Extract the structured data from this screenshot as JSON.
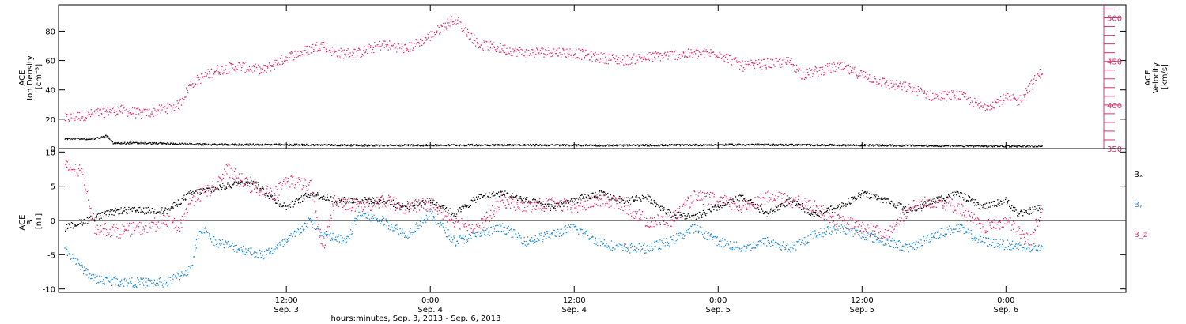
{
  "chart_data": [
    {
      "type": "scatter",
      "panel": "top",
      "left_axis": {
        "label_lines": [
          "ACE",
          "Ion Density",
          "[cm⁻³]"
        ],
        "ylim": [
          0,
          98
        ],
        "ticks": [
          0,
          20,
          40,
          60,
          80
        ]
      },
      "right_axis": {
        "label_lines": [
          "ACE",
          "Velocity",
          "[km/s]"
        ],
        "ylim": [
          350,
          515
        ],
        "ticks": [
          350,
          400,
          450,
          500
        ],
        "color": "#e0306a"
      },
      "series": [
        {
          "axis": "right",
          "color": "#e0306a",
          "noise": 6,
          "points": [
            [
              -6.5,
              385
            ],
            [
              -2,
              395
            ],
            [
              0,
              390
            ],
            [
              3,
              400
            ],
            [
              4,
              425
            ],
            [
              6,
              440
            ],
            [
              8,
              445
            ],
            [
              10,
              440
            ],
            [
              12,
              455
            ],
            [
              15,
              470
            ],
            [
              16,
              460
            ],
            [
              18,
              460
            ],
            [
              20,
              470
            ],
            [
              22,
              465
            ],
            [
              24,
              480
            ],
            [
              26,
              500
            ],
            [
              28,
              470
            ],
            [
              30,
              465
            ],
            [
              32,
              460
            ],
            [
              34,
              462
            ],
            [
              36,
              460
            ],
            [
              38,
              455
            ],
            [
              40,
              452
            ],
            [
              44,
              458
            ],
            [
              48,
              460
            ],
            [
              50,
              445
            ],
            [
              54,
              450
            ],
            [
              55,
              435
            ],
            [
              58,
              445
            ],
            [
              60,
              435
            ],
            [
              62,
              425
            ],
            [
              64,
              420
            ],
            [
              66,
              410
            ],
            [
              68,
              412
            ],
            [
              70,
              398
            ],
            [
              72,
              408
            ],
            [
              73,
              405
            ],
            [
              75,
              440
            ]
          ]
        },
        {
          "axis": "left",
          "color": "#000000",
          "noise": 0.6,
          "points": [
            [
              -6.5,
              7
            ],
            [
              -4,
              7
            ],
            [
              -3,
              9
            ],
            [
              -2.5,
              4
            ],
            [
              0,
              4
            ],
            [
              6,
              3
            ],
            [
              10,
              3
            ],
            [
              20,
              2.5
            ],
            [
              30,
              2.8
            ],
            [
              40,
              2.5
            ],
            [
              50,
              3
            ],
            [
              60,
              2.6
            ],
            [
              70,
              2
            ],
            [
              75,
              2
            ]
          ]
        }
      ]
    },
    {
      "type": "scatter",
      "panel": "bottom",
      "left_axis": {
        "label_lines": [
          "ACE",
          "B",
          "[nT]"
        ],
        "ylim": [
          -10.5,
          10.5
        ],
        "ticks": [
          -10,
          -5,
          0,
          5,
          10
        ]
      },
      "legend": [
        "Bₓ",
        "Bᵧ",
        "B_z"
      ],
      "series": [
        {
          "name": "Bₓ",
          "color": "#000000",
          "noise": 0.5,
          "points": [
            [
              -6.5,
              -1
            ],
            [
              -4,
              0.5
            ],
            [
              -2,
              1.5
            ],
            [
              0,
              1.5
            ],
            [
              2,
              1.5
            ],
            [
              4,
              4
            ],
            [
              8,
              5.5
            ],
            [
              9,
              6
            ],
            [
              11,
              3
            ],
            [
              12,
              2
            ],
            [
              14,
              4
            ],
            [
              16,
              3
            ],
            [
              20,
              3
            ],
            [
              22,
              2
            ],
            [
              24,
              3
            ],
            [
              26,
              1
            ],
            [
              28,
              3.5
            ],
            [
              30,
              4
            ],
            [
              32,
              3
            ],
            [
              34,
              2
            ],
            [
              36,
              3
            ],
            [
              38,
              4
            ],
            [
              40,
              3
            ],
            [
              42,
              3.5
            ],
            [
              44,
              1
            ],
            [
              46,
              0.5
            ],
            [
              48,
              2
            ],
            [
              50,
              3.5
            ],
            [
              52,
              1
            ],
            [
              54,
              3
            ],
            [
              56,
              1
            ],
            [
              58,
              2
            ],
            [
              60,
              4
            ],
            [
              62,
              3
            ],
            [
              64,
              1.5
            ],
            [
              66,
              3
            ],
            [
              68,
              4
            ],
            [
              70,
              2
            ],
            [
              72,
              3
            ],
            [
              73,
              1
            ],
            [
              75,
              2
            ]
          ]
        },
        {
          "name": "Bᵧ",
          "color": "#1f8ad8",
          "noise": 0.7,
          "points": [
            [
              -6.5,
              -4
            ],
            [
              -5,
              -7
            ],
            [
              -4,
              -8.5
            ],
            [
              -1,
              -9
            ],
            [
              2,
              -9
            ],
            [
              4,
              -7
            ],
            [
              4.5,
              -3
            ],
            [
              5,
              -1
            ],
            [
              6,
              -3
            ],
            [
              8,
              -4
            ],
            [
              10,
              -5
            ],
            [
              12,
              -3
            ],
            [
              14,
              0
            ],
            [
              15,
              -2
            ],
            [
              17,
              -3
            ],
            [
              18,
              1
            ],
            [
              20,
              0
            ],
            [
              22,
              -2
            ],
            [
              24,
              1
            ],
            [
              26,
              -3
            ],
            [
              28,
              -2
            ],
            [
              30,
              -1
            ],
            [
              32,
              -3
            ],
            [
              34,
              -2
            ],
            [
              36,
              -1
            ],
            [
              38,
              -3
            ],
            [
              40,
              -4
            ],
            [
              42,
              -4
            ],
            [
              44,
              -3
            ],
            [
              46,
              -1
            ],
            [
              48,
              -3
            ],
            [
              50,
              -4
            ],
            [
              52,
              -3
            ],
            [
              54,
              -4
            ],
            [
              56,
              -2
            ],
            [
              58,
              -1
            ],
            [
              60,
              -2
            ],
            [
              62,
              -3
            ],
            [
              64,
              -4
            ],
            [
              66,
              -2
            ],
            [
              68,
              -1
            ],
            [
              70,
              -3
            ],
            [
              72,
              -3.5
            ],
            [
              75,
              -4
            ]
          ]
        },
        {
          "name": "B_z",
          "color": "#e0306a",
          "noise": 1,
          "points": [
            [
              -6.5,
              8
            ],
            [
              -5,
              7
            ],
            [
              -4,
              -1
            ],
            [
              -2,
              -1.5
            ],
            [
              0,
              -1
            ],
            [
              2,
              0
            ],
            [
              3,
              -1
            ],
            [
              4,
              3
            ],
            [
              6,
              5
            ],
            [
              7,
              7.5
            ],
            [
              9,
              5
            ],
            [
              11,
              4
            ],
            [
              12,
              6
            ],
            [
              13,
              5.5
            ],
            [
              14,
              5
            ],
            [
              15,
              -4
            ],
            [
              16,
              3
            ],
            [
              18,
              2
            ],
            [
              20,
              3
            ],
            [
              22,
              2
            ],
            [
              24,
              2.5
            ],
            [
              26,
              0
            ],
            [
              28,
              -1
            ],
            [
              30,
              3
            ],
            [
              32,
              2
            ],
            [
              34,
              2.5
            ],
            [
              36,
              2
            ],
            [
              38,
              3
            ],
            [
              40,
              2.5
            ],
            [
              42,
              0
            ],
            [
              44,
              0
            ],
            [
              46,
              3.5
            ],
            [
              48,
              3
            ],
            [
              50,
              2
            ],
            [
              52,
              3.5
            ],
            [
              54,
              3
            ],
            [
              56,
              2
            ],
            [
              58,
              0
            ],
            [
              60,
              -1
            ],
            [
              62,
              -2
            ],
            [
              64,
              2
            ],
            [
              66,
              3
            ],
            [
              68,
              2
            ],
            [
              70,
              -1
            ],
            [
              72,
              0
            ],
            [
              74,
              -3
            ],
            [
              75,
              2
            ]
          ]
        }
      ]
    }
  ],
  "x_axis": {
    "xlim": [
      -7,
      82
    ],
    "ticks": [
      {
        "h": 12,
        "time": "12:00",
        "date": "Sep. 3"
      },
      {
        "h": 24,
        "time": "0:00",
        "date": "Sep. 4"
      },
      {
        "h": 36,
        "time": "12:00",
        "date": "Sep. 4"
      },
      {
        "h": 48,
        "time": "0:00",
        "date": "Sep. 5"
      },
      {
        "h": 60,
        "time": "12:00",
        "date": "Sep. 5"
      },
      {
        "h": 72,
        "time": "0:00",
        "date": "Sep. 6"
      }
    ],
    "label": "hours:minutes, Sep.  3, 2013 - Sep.  6, 2013"
  }
}
